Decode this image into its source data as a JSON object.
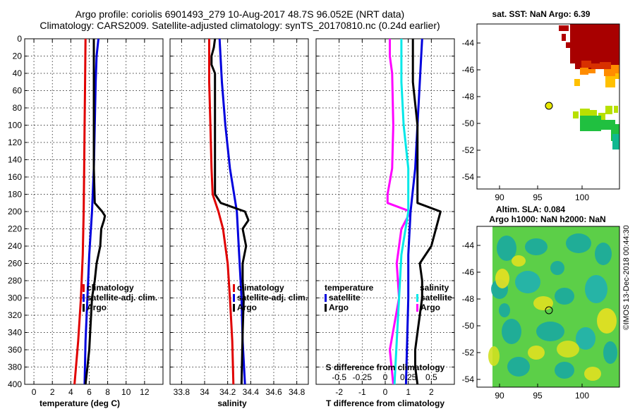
{
  "header": {
    "line1": "Argo profile: coriolis 6901493_279 10-Aug-2017 48.7S 96.052E (NRT data)",
    "line2": "Climatology: CARS2009. Satellite-adjusted climatology: synTS_20170810.nc (0.24d earlier)"
  },
  "colors": {
    "climatology": "#e00000",
    "satellite": "#0000dd",
    "argo": "#000000",
    "s_diff": "#ff00ff",
    "t_diff": "#00e8e8",
    "t_sat": "#0000dd",
    "s_sat": "#ff00ff"
  },
  "chart_data": [
    {
      "type": "line",
      "id": "temperature",
      "xlabel": "temperature (deg C)",
      "xlim": [
        -1,
        14
      ],
      "xticks": [
        0,
        2,
        4,
        6,
        8,
        10,
        12
      ],
      "ylim": [
        0,
        400
      ],
      "yticks": [
        0,
        20,
        40,
        60,
        80,
        100,
        120,
        140,
        160,
        180,
        200,
        220,
        240,
        260,
        280,
        300,
        320,
        340,
        360,
        380,
        400
      ],
      "legend": {
        "position": "lower-right",
        "entries": [
          "climatology",
          "satellite-adj. clim.",
          "Argo"
        ]
      },
      "series": [
        {
          "name": "climatology",
          "color": "#e00000",
          "depth": [
            0,
            50,
            100,
            150,
            200,
            250,
            300,
            350,
            400
          ],
          "values": [
            5.6,
            5.55,
            5.5,
            5.45,
            5.4,
            5.3,
            5.1,
            4.8,
            4.4
          ]
        },
        {
          "name": "satellite-adj. clim.",
          "color": "#0000dd",
          "depth": [
            0,
            20,
            50,
            100,
            150,
            200,
            250,
            300,
            350,
            400
          ],
          "values": [
            7.0,
            6.8,
            6.7,
            6.6,
            6.5,
            6.3,
            6.0,
            5.8,
            5.6,
            5.5
          ]
        },
        {
          "name": "Argo",
          "color": "#000000",
          "depth": [
            0,
            20,
            50,
            100,
            150,
            190,
            195,
            200,
            205,
            210,
            220,
            240,
            260,
            280,
            300,
            320,
            340,
            360,
            380,
            400
          ],
          "values": [
            6.5,
            6.5,
            6.5,
            6.5,
            6.5,
            6.6,
            7.0,
            7.4,
            7.7,
            7.6,
            7.3,
            7.2,
            6.8,
            6.6,
            6.3,
            6.2,
            6.1,
            6.0,
            5.8,
            5.6
          ]
        }
      ]
    },
    {
      "type": "line",
      "id": "salinity",
      "xlabel": "salinity",
      "xlim": [
        33.7,
        34.9
      ],
      "xticks": [
        33.8,
        34.0,
        34.2,
        34.4,
        34.6,
        34.8
      ],
      "ylim": [
        0,
        400
      ],
      "legend": {
        "position": "lower-right",
        "entries": [
          "climatology",
          "satellite-adj. clim.",
          "Argo"
        ]
      },
      "series": [
        {
          "name": "climatology",
          "color": "#e00000",
          "depth": [
            0,
            50,
            100,
            150,
            180,
            200,
            220,
            260,
            300,
            350,
            400
          ],
          "values": [
            34.04,
            34.04,
            34.05,
            34.06,
            34.07,
            34.12,
            34.16,
            34.2,
            34.22,
            34.24,
            34.25
          ]
        },
        {
          "name": "satellite-adj. clim.",
          "color": "#0000dd",
          "depth": [
            0,
            50,
            100,
            150,
            200,
            250,
            300,
            350,
            400
          ],
          "values": [
            34.13,
            34.15,
            34.18,
            34.22,
            34.28,
            34.3,
            34.32,
            34.33,
            34.35
          ]
        },
        {
          "name": "Argo",
          "color": "#000000",
          "depth": [
            0,
            10,
            20,
            30,
            40,
            50,
            100,
            150,
            180,
            190,
            200,
            210,
            220,
            240,
            260,
            280,
            300,
            340,
            400
          ],
          "values": [
            34.09,
            34.08,
            34.06,
            34.06,
            34.09,
            34.09,
            34.09,
            34.09,
            34.09,
            34.14,
            34.35,
            34.38,
            34.33,
            34.36,
            34.33,
            34.33,
            34.34,
            34.33,
            34.32
          ]
        }
      ]
    },
    {
      "type": "line",
      "id": "differences",
      "title": "S difference from climatology",
      "xlabel": "T difference from climatology",
      "xlim": [
        -3,
        3
      ],
      "xticks": [
        -2,
        -1,
        0,
        1,
        2
      ],
      "s_xticks": [
        "-0.5",
        "-0.25",
        "0",
        "0.25",
        "0.5"
      ],
      "ylim": [
        0,
        400
      ],
      "legend_left": {
        "title": "temperature",
        "entries": [
          "satellite",
          "Argo"
        ]
      },
      "legend_right": {
        "title": "salinity",
        "entries": [
          "satellite",
          "Argo"
        ]
      },
      "series": [
        {
          "name": "S Argo diff",
          "color": "#ff00ff",
          "depth": [
            0,
            20,
            40,
            100,
            150,
            180,
            190,
            200,
            220,
            260,
            300,
            360,
            400
          ],
          "values": [
            0.2,
            0.2,
            0.3,
            0.35,
            0.3,
            0.1,
            0.1,
            1.1,
            0.7,
            0.5,
            0.6,
            0.2,
            0.35
          ]
        },
        {
          "name": "S satellite diff",
          "color": "#00e8e8",
          "depth": [
            0,
            50,
            100,
            150,
            200,
            250,
            300,
            350,
            400
          ],
          "values": [
            0.7,
            0.7,
            0.8,
            1.0,
            1.0,
            0.7,
            0.6,
            0.5,
            0.4
          ]
        },
        {
          "name": "T satellite diff",
          "color": "#0000dd",
          "depth": [
            0,
            50,
            100,
            150,
            200,
            250,
            300,
            400
          ],
          "values": [
            1.6,
            1.5,
            1.4,
            1.3,
            1.1,
            1.0,
            1.0,
            0.9
          ]
        },
        {
          "name": "T Argo diff",
          "color": "#000000",
          "depth": [
            0,
            50,
            100,
            150,
            190,
            200,
            210,
            240,
            260,
            280,
            300,
            320,
            340,
            360,
            380,
            400
          ],
          "values": [
            1.2,
            1.2,
            1.4,
            1.4,
            1.4,
            2.4,
            2.3,
            2.0,
            1.5,
            1.6,
            1.6,
            1.5,
            1.4,
            1.3,
            1.3,
            1.4
          ]
        }
      ]
    }
  ],
  "sst_map": {
    "title": "sat. SST: NaN Argo: 6.39",
    "xticks": [
      "90",
      "95",
      "100"
    ],
    "yticks": [
      "-44",
      "-46",
      "-48",
      "-50",
      "-52",
      "-54"
    ]
  },
  "sla_map": {
    "title1": "Altim. SLA: 0.084",
    "title2": "Argo h1000: NaN h2000: NaN",
    "xticks": [
      "90",
      "95",
      "100"
    ],
    "yticks": [
      "-44",
      "-46",
      "-48",
      "-50",
      "-52",
      "-54"
    ]
  },
  "credit": "©IMOS 13-Dec-2018 00:44:30"
}
